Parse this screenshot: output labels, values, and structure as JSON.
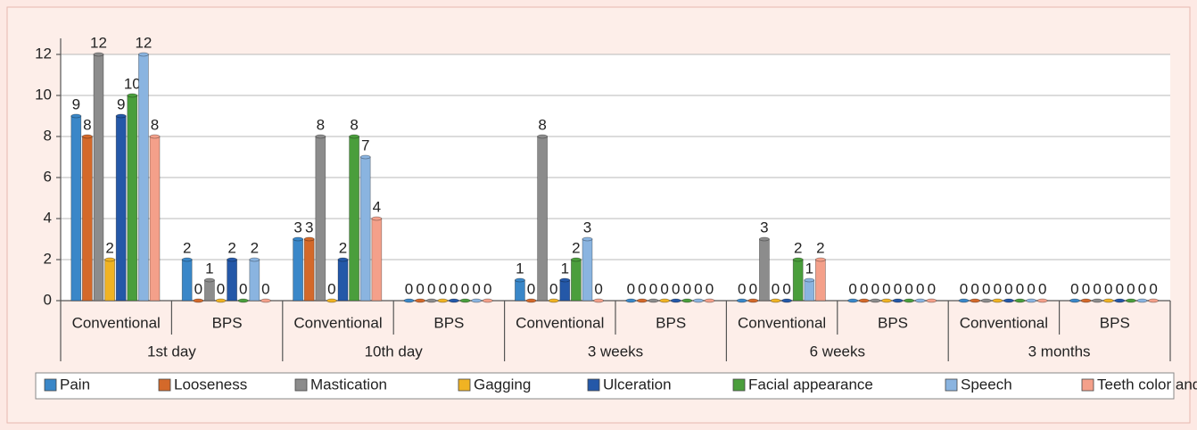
{
  "chart_data": {
    "type": "bar",
    "categories": [
      "Conventional",
      "BPS",
      "Conventional",
      "BPS",
      "Conventional",
      "BPS",
      "Conventional",
      "BPS",
      "Conventional",
      "BPS"
    ],
    "groups": [
      "1st day",
      "10th day",
      "3 weeks",
      "6 weeks",
      "3 months"
    ],
    "series": [
      {
        "name": "Pain",
        "color": "#3a87c8",
        "values": [
          9,
          2,
          3,
          0,
          1,
          0,
          0,
          0,
          0,
          0
        ]
      },
      {
        "name": "Looseness",
        "color": "#d4692a",
        "values": [
          8,
          0,
          3,
          0,
          0,
          0,
          0,
          0,
          0,
          0
        ]
      },
      {
        "name": "Mastication",
        "color": "#8c8c8c",
        "values": [
          12,
          1,
          8,
          0,
          8,
          0,
          3,
          0,
          0,
          0
        ]
      },
      {
        "name": "Gagging",
        "color": "#f0b323",
        "values": [
          2,
          0,
          0,
          0,
          0,
          0,
          0,
          0,
          0,
          0
        ]
      },
      {
        "name": "Ulceration",
        "color": "#2458a8",
        "values": [
          9,
          2,
          2,
          0,
          1,
          0,
          0,
          0,
          0,
          0
        ]
      },
      {
        "name": "Facial appearance",
        "color": "#4a9e3c",
        "values": [
          10,
          0,
          8,
          0,
          2,
          0,
          2,
          0,
          0,
          0
        ]
      },
      {
        "name": "Speech",
        "color": "#8ab4e0",
        "values": [
          12,
          2,
          7,
          0,
          3,
          0,
          1,
          0,
          0,
          0
        ]
      },
      {
        "name": "Teeth color and shape",
        "color": "#f4a08a",
        "values": [
          8,
          0,
          4,
          0,
          0,
          0,
          2,
          0,
          0,
          0
        ]
      }
    ],
    "ylim": [
      0,
      12
    ],
    "yticks": [
      0,
      2,
      4,
      6,
      8,
      10,
      12
    ],
    "grid": true,
    "legend": "bottom"
  }
}
